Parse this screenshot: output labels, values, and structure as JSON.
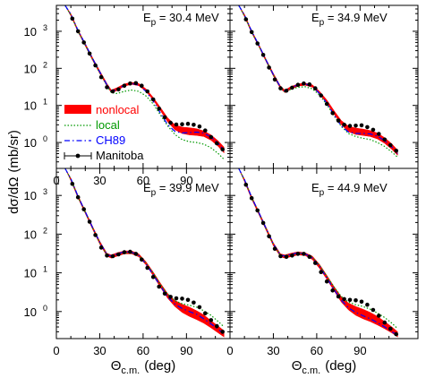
{
  "figure": {
    "ylabel_main": "dσ/dΩ",
    "ylabel_unit": "(mb/sr)",
    "xlabel_main": "Θ",
    "xlabel_sub": "c.m.",
    "xlabel_unit": "(deg)"
  },
  "legend": {
    "items": [
      {
        "key": "nonlocal",
        "label": "nonlocal",
        "color": "#ff0000",
        "style": "band"
      },
      {
        "key": "local",
        "label": "local",
        "color": "#009900",
        "style": "dotted"
      },
      {
        "key": "ch89",
        "label": "CH89",
        "color": "#0000ff",
        "style": "dash-dot"
      },
      {
        "key": "manitoba",
        "label": "Manitoba",
        "color": "#000000",
        "style": "points-with-errorbars"
      }
    ]
  },
  "chart_data": [
    {
      "type": "line",
      "panel": "top-left",
      "energy_prefix": "E",
      "energy_sub": "p",
      "energy_value": " = 30.4 MeV",
      "xlim": [
        0,
        117
      ],
      "ylim_log": [
        0.2,
        5000
      ],
      "yscale": "log",
      "xticks": [
        "0",
        "30",
        "60",
        "90"
      ],
      "yticks": [
        {
          "mantissa": "10",
          "exp": "0"
        },
        {
          "mantissa": "10",
          "exp": "1"
        },
        {
          "mantissa": "10",
          "exp": "2"
        },
        {
          "mantissa": "10",
          "exp": "3"
        }
      ],
      "nonlocal_band": {
        "x": [
          6,
          10,
          15,
          20,
          25,
          30,
          35,
          38,
          42,
          47,
          52,
          57,
          62,
          67,
          72,
          77,
          82,
          87,
          92,
          97,
          102,
          107,
          112,
          116
        ],
        "low": [
          5000,
          2600,
          950,
          400,
          165,
          72,
          33,
          22,
          25,
          33,
          37,
          34,
          24,
          14,
          7.2,
          3.6,
          2.2,
          1.75,
          1.6,
          1.55,
          1.45,
          1.15,
          0.78,
          0.52
        ],
        "high": [
          5000,
          3000,
          1100,
          470,
          195,
          86,
          39,
          26,
          30,
          38,
          42,
          39,
          28,
          16.5,
          8.8,
          4.6,
          3.0,
          2.6,
          2.5,
          2.35,
          2.05,
          1.6,
          1.1,
          0.75
        ]
      },
      "local": {
        "x": [
          6,
          10,
          15,
          20,
          25,
          30,
          35,
          38,
          42,
          47,
          52,
          57,
          62,
          67,
          72,
          77,
          82,
          87,
          92,
          97,
          102,
          107,
          112,
          116
        ],
        "y": [
          5000,
          2700,
          1000,
          420,
          175,
          75,
          34,
          22,
          21,
          24,
          26,
          24,
          18,
          11,
          5.5,
          2.8,
          1.65,
          1.2,
          1.05,
          1.0,
          0.9,
          0.72,
          0.5,
          0.35
        ]
      },
      "ch89": {
        "x": [
          6,
          10,
          15,
          20,
          25,
          30,
          35,
          38,
          42,
          47,
          52,
          57,
          62,
          67,
          72,
          77,
          82,
          87,
          92,
          97,
          102,
          107,
          112,
          116
        ],
        "y": [
          5000,
          2900,
          1050,
          450,
          185,
          80,
          36,
          24,
          27,
          35,
          39,
          35,
          24,
          13,
          6.2,
          3.0,
          2.0,
          1.8,
          1.85,
          1.9,
          1.8,
          1.4,
          0.95,
          0.6
        ]
      },
      "manitoba": {
        "x": [
          11,
          15,
          19,
          23,
          27,
          31,
          35,
          39,
          43,
          47,
          51,
          55,
          59,
          63,
          67,
          71,
          75,
          79,
          83,
          87,
          91,
          95,
          99,
          103,
          107,
          111,
          115
        ],
        "y": [
          2200,
          1000,
          500,
          250,
          120,
          58,
          31,
          24,
          27,
          34,
          39,
          40,
          34,
          24,
          14.5,
          8.2,
          4.8,
          3.4,
          3.05,
          3.1,
          3.2,
          3.0,
          2.7,
          2.1,
          1.4,
          0.95,
          0.65
        ]
      }
    },
    {
      "type": "line",
      "panel": "top-right",
      "energy_prefix": "E",
      "energy_sub": "p",
      "energy_value": " = 34.9 MeV",
      "xlim": [
        0,
        117
      ],
      "ylim_log": [
        0.2,
        5000
      ],
      "yscale": "log",
      "xticks": [],
      "yticks": [],
      "nonlocal_band": {
        "x": [
          6,
          10,
          15,
          20,
          25,
          30,
          35,
          38,
          42,
          47,
          52,
          57,
          62,
          67,
          72,
          77,
          82,
          87,
          92,
          97,
          102,
          107,
          112,
          116
        ],
        "low": [
          5000,
          2500,
          900,
          380,
          150,
          62,
          28,
          22,
          27,
          33,
          35,
          31,
          20,
          11.5,
          5.8,
          3.0,
          1.95,
          1.65,
          1.55,
          1.45,
          1.25,
          0.95,
          0.65,
          0.45
        ],
        "high": [
          5000,
          2900,
          1050,
          440,
          175,
          74,
          33,
          26,
          32,
          38,
          40,
          36,
          24,
          14,
          7.2,
          3.9,
          2.75,
          2.45,
          2.3,
          2.1,
          1.8,
          1.35,
          0.92,
          0.62
        ]
      },
      "local": {
        "x": [
          6,
          10,
          15,
          20,
          25,
          30,
          35,
          38,
          42,
          47,
          52,
          57,
          62,
          67,
          72,
          77,
          82,
          87,
          92,
          97,
          102,
          107,
          112,
          116
        ],
        "y": [
          5000,
          2600,
          950,
          400,
          160,
          66,
          30,
          23,
          27,
          31,
          32,
          28,
          19,
          10.5,
          5.2,
          2.7,
          1.75,
          1.45,
          1.3,
          1.2,
          1.0,
          0.78,
          0.55,
          0.4
        ]
      },
      "ch89": {
        "x": [
          6,
          10,
          15,
          20,
          25,
          30,
          35,
          38,
          42,
          47,
          52,
          57,
          62,
          67,
          72,
          77,
          82,
          87,
          92,
          97,
          102,
          107,
          112,
          116
        ],
        "y": [
          5000,
          2800,
          1000,
          420,
          165,
          68,
          31,
          24,
          30,
          36,
          38,
          33,
          21,
          11.5,
          5.5,
          2.8,
          1.9,
          1.75,
          1.75,
          1.7,
          1.5,
          1.1,
          0.75,
          0.5
        ]
      },
      "manitoba": {
        "x": [
          11,
          15,
          19,
          23,
          27,
          31,
          35,
          39,
          43,
          47,
          51,
          55,
          59,
          63,
          67,
          71,
          75,
          79,
          83,
          87,
          91,
          95,
          99,
          103,
          107,
          111,
          115
        ],
        "y": [
          2100,
          950,
          470,
          230,
          105,
          50,
          29,
          25,
          30,
          36,
          39,
          37,
          29,
          18.5,
          11,
          6.2,
          3.9,
          3.0,
          2.8,
          2.85,
          2.9,
          2.6,
          2.2,
          1.7,
          1.2,
          0.85,
          0.6
        ]
      }
    },
    {
      "type": "line",
      "panel": "bottom-left",
      "energy_prefix": "E",
      "energy_sub": "p",
      "energy_value": " = 39.9 MeV",
      "xlim": [
        0,
        117
      ],
      "ylim_log": [
        0.2,
        5000
      ],
      "yscale": "log",
      "xticks": [
        "0",
        "30",
        "60",
        "90"
      ],
      "yticks": [
        {
          "mantissa": "10",
          "exp": "0"
        },
        {
          "mantissa": "10",
          "exp": "1"
        },
        {
          "mantissa": "10",
          "exp": "2"
        },
        {
          "mantissa": "10",
          "exp": "3"
        }
      ],
      "nonlocal_band": {
        "x": [
          6,
          10,
          15,
          20,
          25,
          30,
          35,
          38,
          42,
          47,
          52,
          57,
          62,
          67,
          72,
          77,
          82,
          87,
          92,
          97,
          102,
          107,
          112,
          116
        ],
        "low": [
          5000,
          2400,
          850,
          340,
          135,
          55,
          27,
          24,
          27,
          31,
          31,
          26,
          16,
          8.4,
          4.2,
          2.2,
          1.35,
          0.95,
          0.75,
          0.62,
          0.5,
          0.38,
          0.28,
          0.22
        ],
        "high": [
          5000,
          2800,
          1000,
          400,
          160,
          66,
          32,
          29,
          33,
          37,
          37,
          31,
          19.5,
          10.5,
          5.4,
          2.9,
          1.95,
          1.55,
          1.3,
          1.05,
          0.82,
          0.58,
          0.42,
          0.32
        ]
      },
      "local": {
        "x": [
          6,
          10,
          15,
          20,
          25,
          30,
          35,
          38,
          42,
          47,
          52,
          57,
          62,
          67,
          72,
          77,
          82,
          87,
          92,
          97,
          102,
          107,
          112,
          116
        ],
        "y": [
          5000,
          2600,
          920,
          370,
          145,
          60,
          29,
          26,
          29,
          33,
          33,
          28,
          18,
          9.8,
          5.0,
          2.8,
          1.9,
          1.6,
          1.45,
          1.3,
          1.05,
          0.8,
          0.55,
          0.4
        ]
      },
      "ch89": {
        "x": [
          6,
          10,
          15,
          20,
          25,
          30,
          35,
          38,
          42,
          47,
          52,
          57,
          62,
          67,
          72,
          77,
          82,
          87,
          92,
          97,
          102,
          107,
          112,
          116
        ],
        "y": [
          5000,
          2700,
          950,
          380,
          150,
          62,
          30,
          27,
          31,
          35,
          34,
          28,
          17,
          9.0,
          4.5,
          2.4,
          1.55,
          1.2,
          1.0,
          0.85,
          0.65,
          0.48,
          0.35,
          0.26
        ]
      },
      "manitoba": {
        "x": [
          11,
          15,
          19,
          23,
          27,
          31,
          35,
          39,
          43,
          47,
          51,
          55,
          59,
          63,
          67,
          71,
          75,
          79,
          83,
          87,
          91,
          95,
          99,
          103,
          107,
          111,
          115
        ],
        "y": [
          2000,
          900,
          440,
          210,
          95,
          45,
          28,
          27,
          30,
          34,
          35,
          31,
          22,
          13.5,
          7.8,
          4.4,
          2.9,
          2.4,
          2.2,
          2.15,
          2.0,
          1.7,
          1.3,
          0.9,
          0.6,
          0.42,
          0.3
        ]
      }
    },
    {
      "type": "line",
      "panel": "bottom-right",
      "energy_prefix": "E",
      "energy_sub": "p",
      "energy_value": " = 44.9 MeV",
      "xlim": [
        0,
        117
      ],
      "ylim_log": [
        0.2,
        5000
      ],
      "yscale": "log",
      "xticks": [
        "0",
        "30",
        "60",
        "90"
      ],
      "yticks": [],
      "nonlocal_band": {
        "x": [
          6,
          10,
          15,
          20,
          25,
          30,
          35,
          38,
          42,
          47,
          52,
          57,
          62,
          67,
          72,
          77,
          82,
          87,
          92,
          97,
          102,
          107,
          112,
          116
        ],
        "low": [
          5000,
          2300,
          800,
          320,
          125,
          50,
          26,
          24,
          26,
          29,
          28,
          22,
          13,
          6.8,
          3.4,
          1.75,
          1.1,
          0.8,
          0.65,
          0.55,
          0.45,
          0.36,
          0.28,
          0.22
        ],
        "high": [
          5000,
          2700,
          950,
          380,
          150,
          60,
          31,
          29,
          32,
          35,
          33,
          27,
          16.5,
          8.6,
          4.4,
          2.4,
          1.65,
          1.35,
          1.15,
          0.95,
          0.75,
          0.55,
          0.4,
          0.3
        ]
      },
      "local": {
        "x": [
          6,
          10,
          15,
          20,
          25,
          30,
          35,
          38,
          42,
          47,
          52,
          57,
          62,
          67,
          72,
          77,
          82,
          87,
          92,
          97,
          102,
          107,
          112,
          116
        ],
        "y": [
          5000,
          2500,
          880,
          350,
          135,
          55,
          28,
          27,
          29,
          32,
          31,
          25,
          15.5,
          8.2,
          4.3,
          2.45,
          1.75,
          1.5,
          1.35,
          1.15,
          0.92,
          0.7,
          0.5,
          0.36
        ]
      },
      "ch89": {
        "x": [
          6,
          10,
          15,
          20,
          25,
          30,
          35,
          38,
          42,
          47,
          52,
          57,
          62,
          67,
          72,
          77,
          82,
          87,
          92,
          97,
          102,
          107,
          112,
          116
        ],
        "y": [
          5000,
          2600,
          900,
          360,
          140,
          56,
          29,
          27,
          30,
          33,
          31,
          24,
          14.5,
          7.4,
          3.7,
          1.95,
          1.25,
          0.95,
          0.78,
          0.65,
          0.52,
          0.4,
          0.3,
          0.24
        ]
      },
      "manitoba": {
        "x": [
          11,
          15,
          19,
          23,
          27,
          31,
          35,
          39,
          43,
          47,
          51,
          55,
          59,
          63,
          67,
          71,
          75,
          79,
          83,
          87,
          91,
          95,
          99,
          103,
          107,
          111,
          115
        ],
        "y": [
          1900,
          850,
          410,
          195,
          88,
          42,
          27,
          26,
          28,
          31,
          31,
          26,
          18,
          10.5,
          6.0,
          3.5,
          2.45,
          2.1,
          2.0,
          1.95,
          1.8,
          1.5,
          1.1,
          0.78,
          0.52,
          0.36,
          0.26
        ]
      }
    }
  ]
}
